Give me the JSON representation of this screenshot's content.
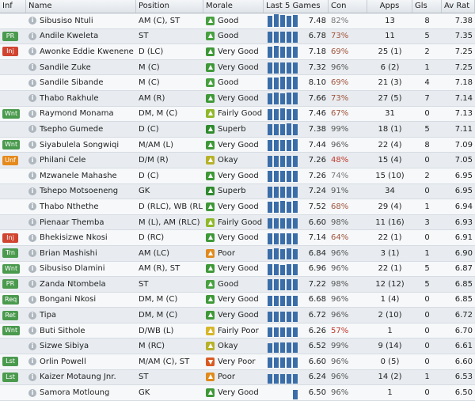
{
  "headers": {
    "inf": "Inf",
    "name": "Name",
    "position": "Position",
    "morale": "Morale",
    "last5": "Last 5 Games",
    "con": "Con",
    "apps": "Apps",
    "gls": "Gls",
    "avrat": "Av Rat"
  },
  "colors": {
    "PR": "#4a9a4e",
    "Inj": "#d04430",
    "Wnt": "#4a9a4e",
    "Unf": "#e58a1d",
    "Trn": "#4a9a4e",
    "Req": "#4a9a4e",
    "Ret": "#4a9a4e",
    "Lst": "#4a9a4e",
    "con_low": "#c0392b",
    "con_mid": "#a0523a"
  },
  "rows": [
    {
      "inf": "",
      "name": "Sibusiso Ntuli",
      "position": "AM (C), ST",
      "morale": "Good",
      "morale_color": "#48a040",
      "morale_dir": "up",
      "last5": "7.48",
      "bars": [
        0.7,
        0.8,
        0.75,
        0.7,
        0.75
      ],
      "con": "82%",
      "con_color": "#777",
      "apps": "13",
      "gls": "8",
      "avrat": "7.38"
    },
    {
      "inf": "PR",
      "name": "Andile Kweleta",
      "position": "ST",
      "morale": "Good",
      "morale_color": "#48a040",
      "morale_dir": "up",
      "last5": "6.78",
      "bars": [
        0.7,
        0.7,
        0.7,
        0.7,
        0.7
      ],
      "con": "73%",
      "con_color": "#a0523a",
      "apps": "11",
      "gls": "5",
      "avrat": "7.35"
    },
    {
      "inf": "Inj",
      "name": "Awonke Eddie Kwenene",
      "position": "D (LC)",
      "morale": "Very Good",
      "morale_color": "#3f9838",
      "morale_dir": "up",
      "last5": "7.18",
      "bars": [
        0.7,
        0.75,
        0.7,
        0.7,
        0.7
      ],
      "con": "69%",
      "con_color": "#a0523a",
      "apps": "25 (1)",
      "gls": "2",
      "avrat": "7.25"
    },
    {
      "inf": "",
      "name": "Sandile Zuke",
      "position": "M (C)",
      "morale": "Very Good",
      "morale_color": "#3f9838",
      "morale_dir": "up",
      "last5": "7.32",
      "bars": [
        0.7,
        0.7,
        0.7,
        0.7,
        0.7
      ],
      "con": "96%",
      "con_color": "#555",
      "apps": "6 (2)",
      "gls": "1",
      "avrat": "7.25"
    },
    {
      "inf": "",
      "name": "Sandile Sibande",
      "position": "M (C)",
      "morale": "Good",
      "morale_color": "#48a040",
      "morale_dir": "up",
      "last5": "8.10",
      "bars": [
        0.75,
        0.75,
        0.8,
        0.8,
        0.8
      ],
      "con": "69%",
      "con_color": "#a0523a",
      "apps": "21 (3)",
      "gls": "4",
      "avrat": "7.18"
    },
    {
      "inf": "",
      "name": "Thabo Rakhule",
      "position": "AM (R)",
      "morale": "Very Good",
      "morale_color": "#3f9838",
      "morale_dir": "up",
      "last5": "7.66",
      "bars": [
        0.7,
        0.75,
        0.7,
        0.75,
        0.75
      ],
      "con": "73%",
      "con_color": "#a0523a",
      "apps": "27 (5)",
      "gls": "7",
      "avrat": "7.14"
    },
    {
      "inf": "Wnt",
      "name": "Raymond Monama",
      "position": "DM, M (C)",
      "morale": "Fairly Good",
      "morale_color": "#8fb82a",
      "morale_dir": "up",
      "last5": "7.46",
      "bars": [
        0.7,
        0.7,
        0.75,
        0.7,
        0.7
      ],
      "con": "67%",
      "con_color": "#a0523a",
      "apps": "31",
      "gls": "0",
      "avrat": "7.13"
    },
    {
      "inf": "",
      "name": "Tsepho Gumede",
      "position": "D (C)",
      "morale": "Superb",
      "morale_color": "#2f8a2c",
      "morale_dir": "up",
      "last5": "7.38",
      "bars": [
        0.7,
        0.7,
        0.7,
        0.75,
        0.7
      ],
      "con": "99%",
      "con_color": "#555",
      "apps": "18 (1)",
      "gls": "5",
      "avrat": "7.11"
    },
    {
      "inf": "Wnt",
      "name": "Siyabulela Songwiqi",
      "position": "M/AM (L)",
      "morale": "Very Good",
      "morale_color": "#3f9838",
      "morale_dir": "up",
      "last5": "7.44",
      "bars": [
        0.7,
        0.7,
        0.7,
        0.7,
        0.75
      ],
      "con": "96%",
      "con_color": "#555",
      "apps": "22 (4)",
      "gls": "8",
      "avrat": "7.09"
    },
    {
      "inf": "Unf",
      "name": "Philani Cele",
      "position": "D/M (R)",
      "morale": "Okay",
      "morale_color": "#b7b12a",
      "morale_dir": "up",
      "last5": "7.26",
      "bars": [
        0.7,
        0.7,
        0.7,
        0.7,
        0.7
      ],
      "con": "48%",
      "con_color": "#c0392b",
      "apps": "15 (4)",
      "gls": "0",
      "avrat": "7.05"
    },
    {
      "inf": "",
      "name": "Mzwanele Mahashe",
      "position": "D (C)",
      "morale": "Very Good",
      "morale_color": "#3f9838",
      "morale_dir": "up",
      "last5": "7.26",
      "bars": [
        0.7,
        0.7,
        0.7,
        0.7,
        0.7
      ],
      "con": "74%",
      "con_color": "#777",
      "apps": "15 (10)",
      "gls": "2",
      "avrat": "6.95"
    },
    {
      "inf": "",
      "name": "Tshepo Motsoeneng",
      "position": "GK",
      "morale": "Superb",
      "morale_color": "#2f8a2c",
      "morale_dir": "up",
      "last5": "7.24",
      "bars": [
        0.7,
        0.7,
        0.7,
        0.7,
        0.7
      ],
      "con": "91%",
      "con_color": "#555",
      "apps": "34",
      "gls": "0",
      "avrat": "6.95"
    },
    {
      "inf": "",
      "name": "Thabo Nthethe",
      "position": "D (RLC), WB (RL)",
      "morale": "Very Good",
      "morale_color": "#3f9838",
      "morale_dir": "up",
      "last5": "7.52",
      "bars": [
        0.7,
        0.7,
        0.75,
        0.7,
        0.75
      ],
      "con": "68%",
      "con_color": "#a0523a",
      "apps": "29 (4)",
      "gls": "1",
      "avrat": "6.94"
    },
    {
      "inf": "",
      "name": "Pienaar Themba",
      "position": "M (L), AM (RLC)",
      "morale": "Fairly Good",
      "morale_color": "#8fb82a",
      "morale_dir": "up",
      "last5": "6.60",
      "bars": [
        0.65,
        0.65,
        0.65,
        0.65,
        0.65
      ],
      "con": "98%",
      "con_color": "#555",
      "apps": "11 (16)",
      "gls": "3",
      "avrat": "6.93"
    },
    {
      "inf": "Inj",
      "name": "Bhekisizwe Nkosi",
      "position": "D (RC)",
      "morale": "Very Good",
      "morale_color": "#3f9838",
      "morale_dir": "up",
      "last5": "7.14",
      "bars": [
        0.7,
        0.7,
        0.7,
        0.7,
        0.7
      ],
      "con": "64%",
      "con_color": "#a0523a",
      "apps": "22 (1)",
      "gls": "0",
      "avrat": "6.91"
    },
    {
      "inf": "Trn",
      "name": "Brian Mashishi",
      "position": "AM (LC)",
      "morale": "Poor",
      "morale_color": "#e08a1e",
      "morale_dir": "up",
      "last5": "6.84",
      "bars": [
        0.65,
        0.7,
        0.65,
        0.7,
        0.65
      ],
      "con": "96%",
      "con_color": "#555",
      "apps": "3 (1)",
      "gls": "1",
      "avrat": "6.90"
    },
    {
      "inf": "Wnt",
      "name": "Sibusiso Dlamini",
      "position": "AM (R), ST",
      "morale": "Very Good",
      "morale_color": "#3f9838",
      "morale_dir": "up",
      "last5": "6.96",
      "bars": [
        0.7,
        0.7,
        0.65,
        0.7,
        0.7
      ],
      "con": "96%",
      "con_color": "#555",
      "apps": "22 (1)",
      "gls": "5",
      "avrat": "6.87"
    },
    {
      "inf": "PR",
      "name": "Zanda Ntombela",
      "position": "ST",
      "morale": "Good",
      "morale_color": "#48a040",
      "morale_dir": "up",
      "last5": "7.22",
      "bars": [
        0.7,
        0.7,
        0.7,
        0.7,
        0.7
      ],
      "con": "98%",
      "con_color": "#555",
      "apps": "12 (12)",
      "gls": "5",
      "avrat": "6.85"
    },
    {
      "inf": "Req",
      "name": "Bongani Nkosi",
      "position": "DM, M (C)",
      "morale": "Very Good",
      "morale_color": "#3f9838",
      "morale_dir": "up",
      "last5": "6.68",
      "bars": [
        0.65,
        0.65,
        0.65,
        0.65,
        0.65
      ],
      "con": "96%",
      "con_color": "#555",
      "apps": "1 (4)",
      "gls": "0",
      "avrat": "6.85"
    },
    {
      "inf": "Ret",
      "name": "Tipa",
      "position": "DM, M (C)",
      "morale": "Very Good",
      "morale_color": "#3f9838",
      "morale_dir": "up",
      "last5": "6.72",
      "bars": [
        0.65,
        0.65,
        0.65,
        0.65,
        0.65
      ],
      "con": "96%",
      "con_color": "#555",
      "apps": "2 (10)",
      "gls": "0",
      "avrat": "6.72"
    },
    {
      "inf": "Wnt",
      "name": "Buti Sithole",
      "position": "D/WB (L)",
      "morale": "Fairly Poor",
      "morale_color": "#d7b62a",
      "morale_dir": "up",
      "last5": "6.26",
      "bars": [
        0.6,
        0.6,
        0.6,
        0.6,
        0.6
      ],
      "con": "57%",
      "con_color": "#c0392b",
      "apps": "1",
      "gls": "0",
      "avrat": "6.70"
    },
    {
      "inf": "",
      "name": "Sizwe Sibiya",
      "position": "M (RC)",
      "morale": "Okay",
      "morale_color": "#b7b12a",
      "morale_dir": "up",
      "last5": "6.52",
      "bars": [
        0.6,
        0.65,
        0.65,
        0.65,
        0.65
      ],
      "con": "99%",
      "con_color": "#555",
      "apps": "9 (14)",
      "gls": "0",
      "avrat": "6.61"
    },
    {
      "inf": "Lst",
      "name": "Orlin Powell",
      "position": "M/AM (C), ST",
      "morale": "Very Poor",
      "morale_color": "#d85a22",
      "morale_dir": "down",
      "last5": "6.60",
      "bars": [
        0.65,
        0.65,
        0.65,
        0.65,
        0.65
      ],
      "con": "96%",
      "con_color": "#555",
      "apps": "0 (5)",
      "gls": "0",
      "avrat": "6.60"
    },
    {
      "inf": "Lst",
      "name": "Kaizer Motaung Jnr.",
      "position": "ST",
      "morale": "Poor",
      "morale_color": "#e08a1e",
      "morale_dir": "up",
      "last5": "6.24",
      "bars": [
        0.6,
        0.6,
        0.6,
        0.6,
        0.6
      ],
      "con": "96%",
      "con_color": "#555",
      "apps": "14 (2)",
      "gls": "1",
      "avrat": "6.53"
    },
    {
      "inf": "",
      "name": "Samora Motloung",
      "position": "GK",
      "morale": "Very Good",
      "morale_color": "#3f9838",
      "morale_dir": "up",
      "last5": "6.50",
      "bars": [
        0,
        0,
        0,
        0,
        0.6
      ],
      "con": "96%",
      "con_color": "#555",
      "apps": "1",
      "gls": "0",
      "avrat": "6.50"
    }
  ]
}
